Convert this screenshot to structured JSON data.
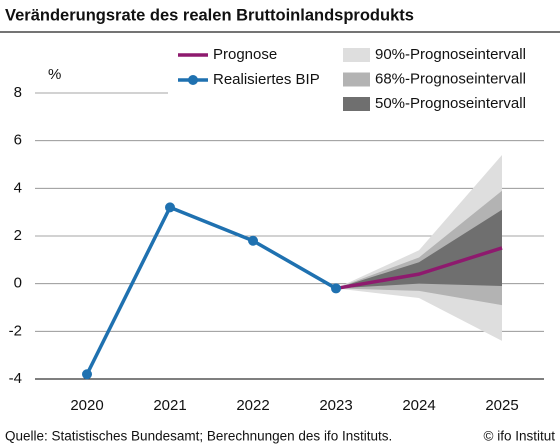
{
  "chart_data": {
    "type": "line",
    "title": "Veränderungsrate des realen Bruttoinlandsprodukts",
    "ylabel": "%",
    "categories": [
      "2020",
      "2021",
      "2022",
      "2023",
      "2024",
      "2025"
    ],
    "series": [
      {
        "name": "Prognose",
        "color": "#8e1a6e",
        "values": [
          null,
          null,
          null,
          -0.2,
          0.4,
          1.5
        ]
      },
      {
        "name": "Realisiertes BIP",
        "color": "#1f71b0",
        "values": [
          -3.8,
          3.2,
          1.8,
          -0.2,
          null,
          null
        ],
        "markers": true
      }
    ],
    "bands": [
      {
        "name": "90%-Prognoseintervall",
        "color": "#dedede",
        "lower": [
          null,
          null,
          null,
          -0.2,
          -0.6,
          -2.4
        ],
        "upper": [
          null,
          null,
          null,
          -0.2,
          1.4,
          5.4
        ]
      },
      {
        "name": "68%-Prognoseintervall",
        "color": "#b3b3b3",
        "lower": [
          null,
          null,
          null,
          -0.2,
          -0.3,
          -0.9
        ],
        "upper": [
          null,
          null,
          null,
          -0.2,
          1.1,
          3.9
        ]
      },
      {
        "name": "50%-Prognoseintervall",
        "color": "#6f6f6f",
        "lower": [
          null,
          null,
          null,
          -0.2,
          0.0,
          -0.1
        ],
        "upper": [
          null,
          null,
          null,
          -0.2,
          0.9,
          3.1
        ]
      }
    ],
    "ylim": [
      -4,
      8
    ],
    "yticks": [
      -4,
      -2,
      0,
      2,
      4,
      6,
      8
    ],
    "grid": true,
    "source": "Quelle: Statistisches Bundesamt; Berechnungen des ifo Instituts.",
    "copyright": "© ifo Institut"
  }
}
